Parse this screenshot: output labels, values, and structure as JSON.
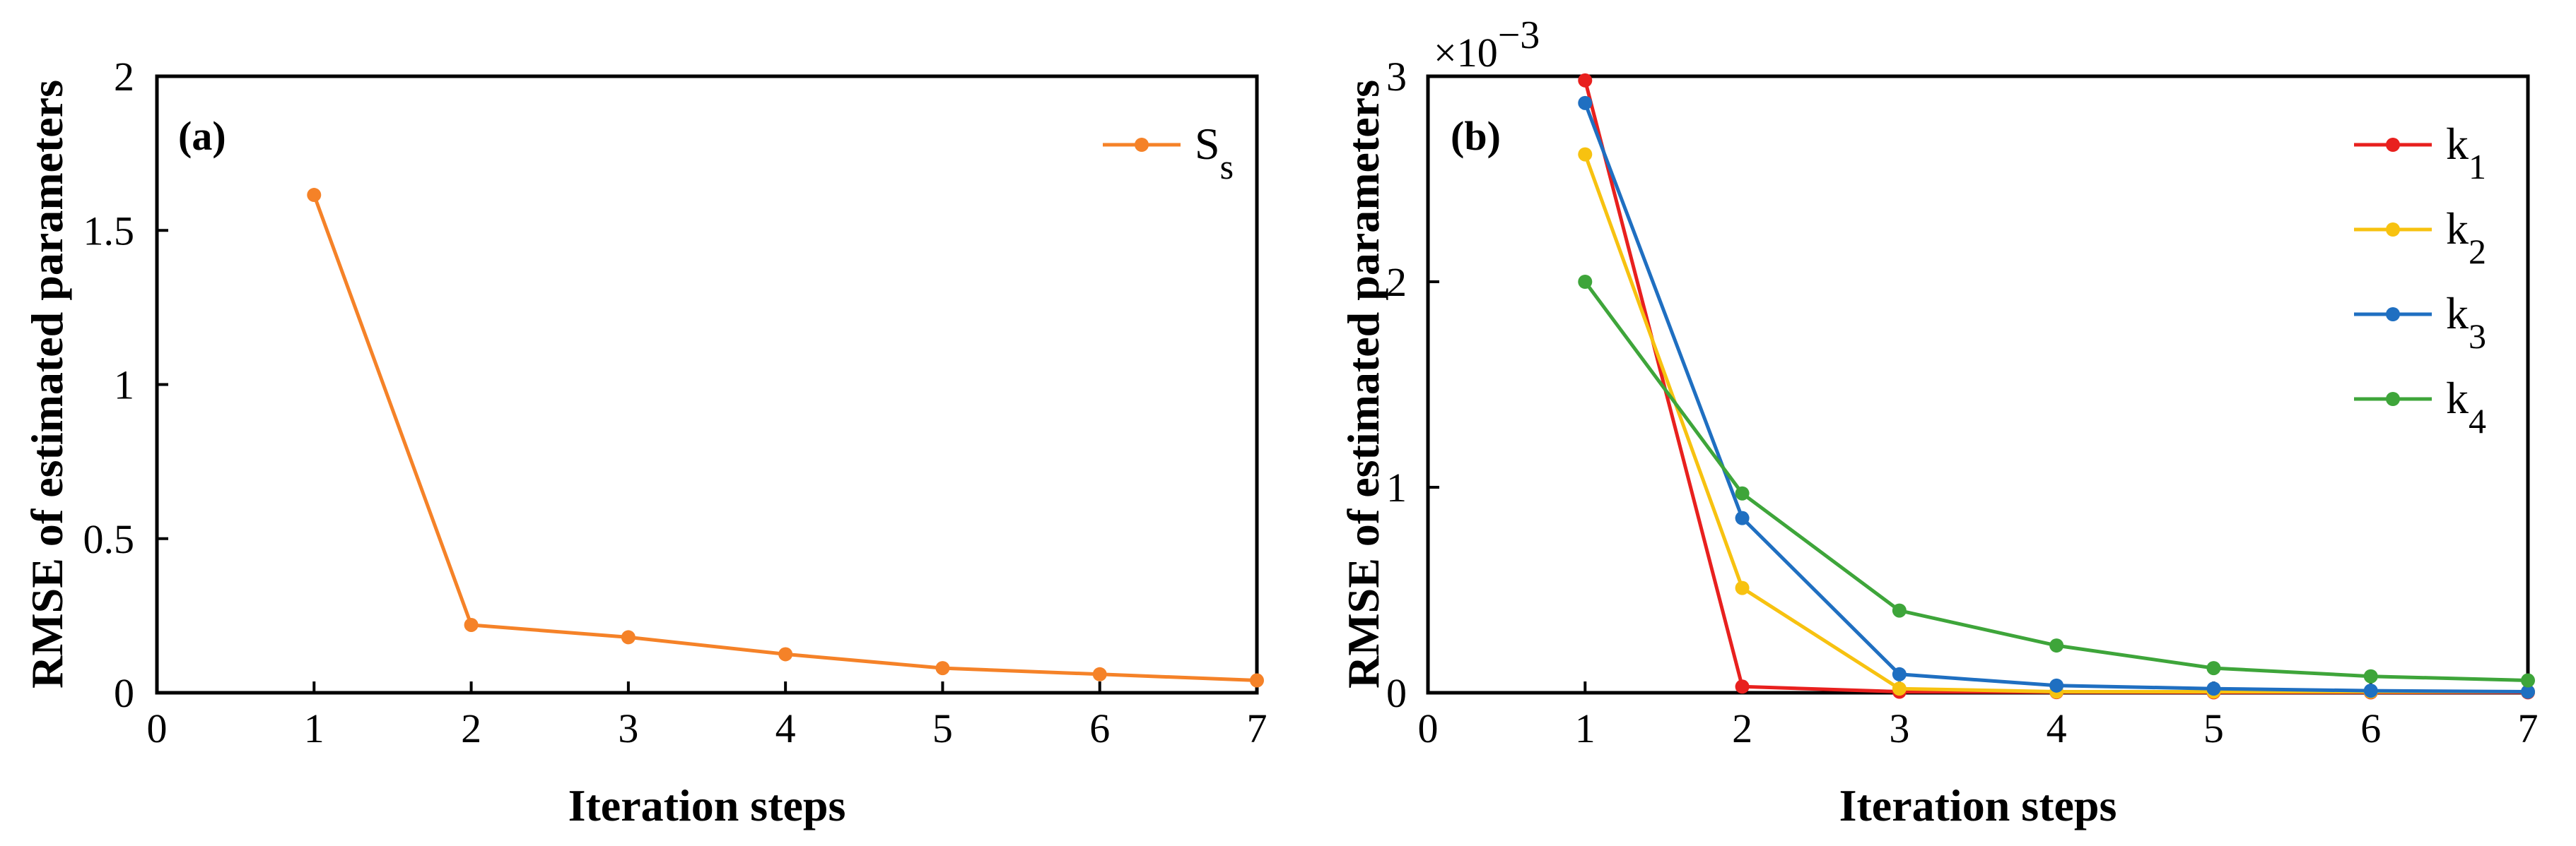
{
  "chart_data": [
    {
      "panel_label": "(a)",
      "type": "line",
      "xlabel": "Iteration steps",
      "ylabel": "RMSE of estimated parameters",
      "xlim": [
        0,
        7
      ],
      "ylim": [
        0,
        2
      ],
      "xticks": [
        "0",
        "1",
        "2",
        "3",
        "4",
        "5",
        "6",
        "7"
      ],
      "yticks": [
        "0",
        "0.5",
        "1",
        "1.5",
        "2"
      ],
      "ytick_values": [
        0,
        0.5,
        1,
        1.5,
        2
      ],
      "legend_position": "top-right",
      "series": [
        {
          "name": "S",
          "subscript": "s",
          "color": "#f58228",
          "x": [
            1,
            2,
            3,
            4,
            5,
            6,
            7
          ],
          "values": [
            1.615,
            0.22,
            0.18,
            0.125,
            0.08,
            0.06,
            0.04
          ]
        }
      ]
    },
    {
      "panel_label": "(b)",
      "type": "line",
      "xlabel": "Iteration steps",
      "ylabel": "RMSE of estimated parameters",
      "exponent_label": "×10",
      "exponent_value": "−3",
      "xlim": [
        0,
        7
      ],
      "ylim": [
        0,
        3
      ],
      "xticks": [
        "0",
        "1",
        "2",
        "3",
        "4",
        "5",
        "6",
        "7"
      ],
      "yticks": [
        "0",
        "1",
        "2",
        "3"
      ],
      "ytick_values": [
        0,
        1,
        2,
        3
      ],
      "legend_position": "top-right",
      "series": [
        {
          "name": "k",
          "subscript": "1",
          "color": "#e8201e",
          "x": [
            1,
            2,
            3,
            4,
            5,
            6,
            7
          ],
          "values": [
            2.98,
            0.03,
            0.005,
            0.003,
            0.002,
            0.002,
            0.002
          ]
        },
        {
          "name": "k",
          "subscript": "2",
          "color": "#f7c210",
          "x": [
            1,
            2,
            3,
            4,
            5,
            6,
            7
          ],
          "values": [
            2.62,
            0.51,
            0.02,
            0.005,
            0.005,
            0.005,
            0.005
          ]
        },
        {
          "name": "k",
          "subscript": "3",
          "color": "#1f6fc1",
          "x": [
            1,
            2,
            3,
            4,
            5,
            6,
            7
          ],
          "values": [
            2.87,
            0.85,
            0.09,
            0.035,
            0.02,
            0.01,
            0.005
          ]
        },
        {
          "name": "k",
          "subscript": "4",
          "color": "#3ea53a",
          "x": [
            1,
            2,
            3,
            4,
            5,
            6,
            7
          ],
          "values": [
            2.0,
            0.97,
            0.4,
            0.23,
            0.12,
            0.08,
            0.06
          ]
        }
      ]
    }
  ]
}
